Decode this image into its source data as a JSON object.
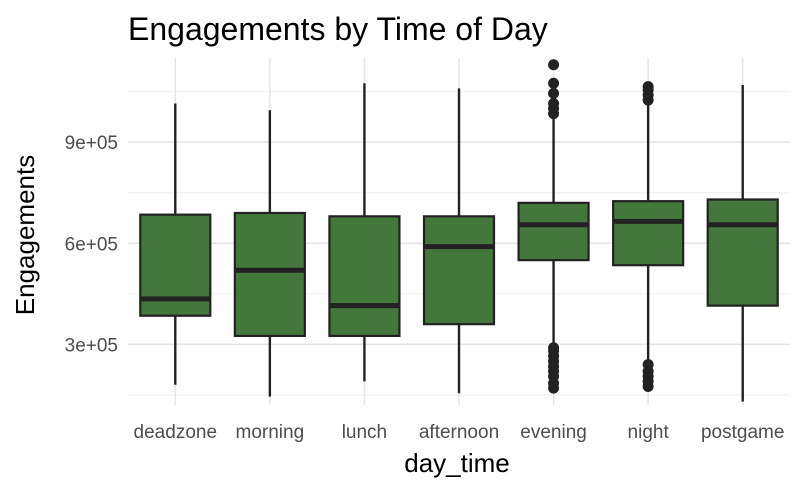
{
  "chart_data": {
    "type": "boxplot",
    "title": "Engagements by Time of Day",
    "xlabel": "day_time",
    "ylabel": "Engagements",
    "ylim": [
      120000,
      1150000
    ],
    "yticks": [
      300000,
      600000,
      900000
    ],
    "ytick_labels": [
      "3e+05",
      "6e+05",
      "9e+05"
    ],
    "grid": true,
    "legend": "none",
    "box_color": "#43773b",
    "line_color": "#222222",
    "categories": [
      "deadzone",
      "morning",
      "lunch",
      "afternoon",
      "evening",
      "night",
      "postgame"
    ],
    "boxes": [
      {
        "min": 180000,
        "q1": 385000,
        "median": 435000,
        "q3": 685000,
        "max": 1015000,
        "outliers": []
      },
      {
        "min": 145000,
        "q1": 325000,
        "median": 520000,
        "q3": 690000,
        "max": 995000,
        "outliers": []
      },
      {
        "min": 190000,
        "q1": 325000,
        "median": 415000,
        "q3": 680000,
        "max": 1075000,
        "outliers": []
      },
      {
        "min": 155000,
        "q1": 360000,
        "median": 590000,
        "q3": 680000,
        "max": 1060000,
        "outliers": []
      },
      {
        "min": 300000,
        "q1": 550000,
        "median": 655000,
        "q3": 720000,
        "max": 975000,
        "outliers": [
          170000,
          185000,
          205000,
          220000,
          235000,
          250000,
          265000,
          280000,
          290000,
          985000,
          1000000,
          1015000,
          1045000,
          1075000,
          1130000
        ]
      },
      {
        "min": 255000,
        "q1": 535000,
        "median": 665000,
        "q3": 725000,
        "max": 1015000,
        "outliers": [
          175000,
          190000,
          205000,
          220000,
          240000,
          1025000,
          1040000,
          1055000,
          1065000
        ]
      },
      {
        "min": 130000,
        "q1": 415000,
        "median": 655000,
        "q3": 730000,
        "max": 1070000,
        "outliers": []
      }
    ]
  }
}
